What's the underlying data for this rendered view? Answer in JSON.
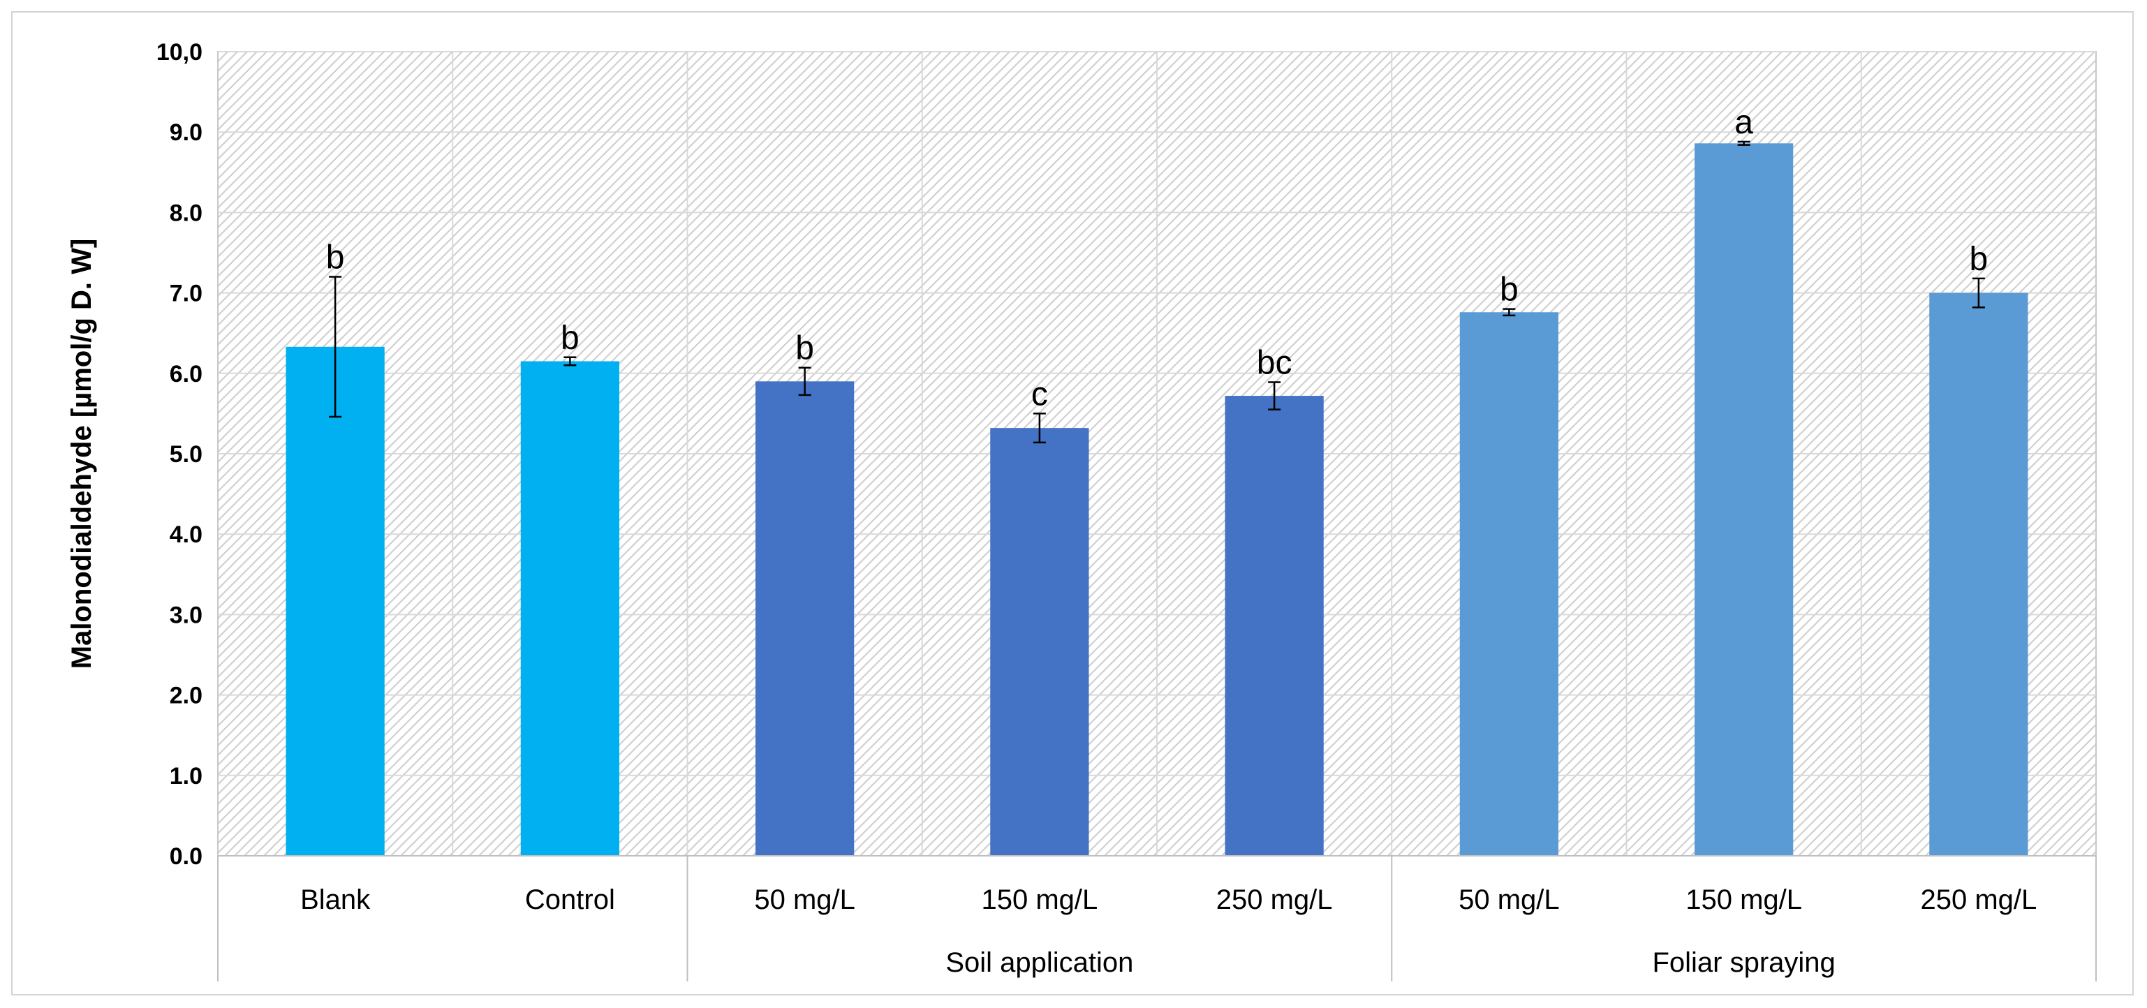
{
  "chart_data": {
    "type": "bar",
    "title": "",
    "ylabel": "Malonodialdehyde [µmol/g D. W]",
    "xlabel": "",
    "ylim": [
      0,
      10
    ],
    "y_ticks": [
      "0.0",
      "1.0",
      "2.0",
      "3.0",
      "4.0",
      "5.0",
      "6.0",
      "7.0",
      "8.0",
      "9.0",
      "10,0"
    ],
    "grid": true,
    "legend": "none",
    "categories": [
      "Blank",
      "Control",
      "50 mg/L",
      "150 mg/L",
      "250 mg/L",
      "50 mg/L",
      "150 mg/L",
      "250 mg/L"
    ],
    "groups": [
      {
        "label": "",
        "span": 2
      },
      {
        "label": "Soil application",
        "span": 3
      },
      {
        "label": "Foliar spraying",
        "span": 3
      }
    ],
    "values": [
      6.33,
      6.15,
      5.9,
      5.32,
      5.72,
      6.76,
      8.86,
      7.0
    ],
    "errors": [
      0.87,
      0.05,
      0.17,
      0.18,
      0.17,
      0.04,
      0.02,
      0.18
    ],
    "significance": [
      "b",
      "b",
      "b",
      "c",
      "bc",
      "b",
      "a",
      "b"
    ],
    "bar_colors": [
      "#00b0f0",
      "#00b0f0",
      "#4472c4",
      "#4472c4",
      "#4472c4",
      "#5b9bd5",
      "#5b9bd5",
      "#5b9bd5"
    ]
  }
}
